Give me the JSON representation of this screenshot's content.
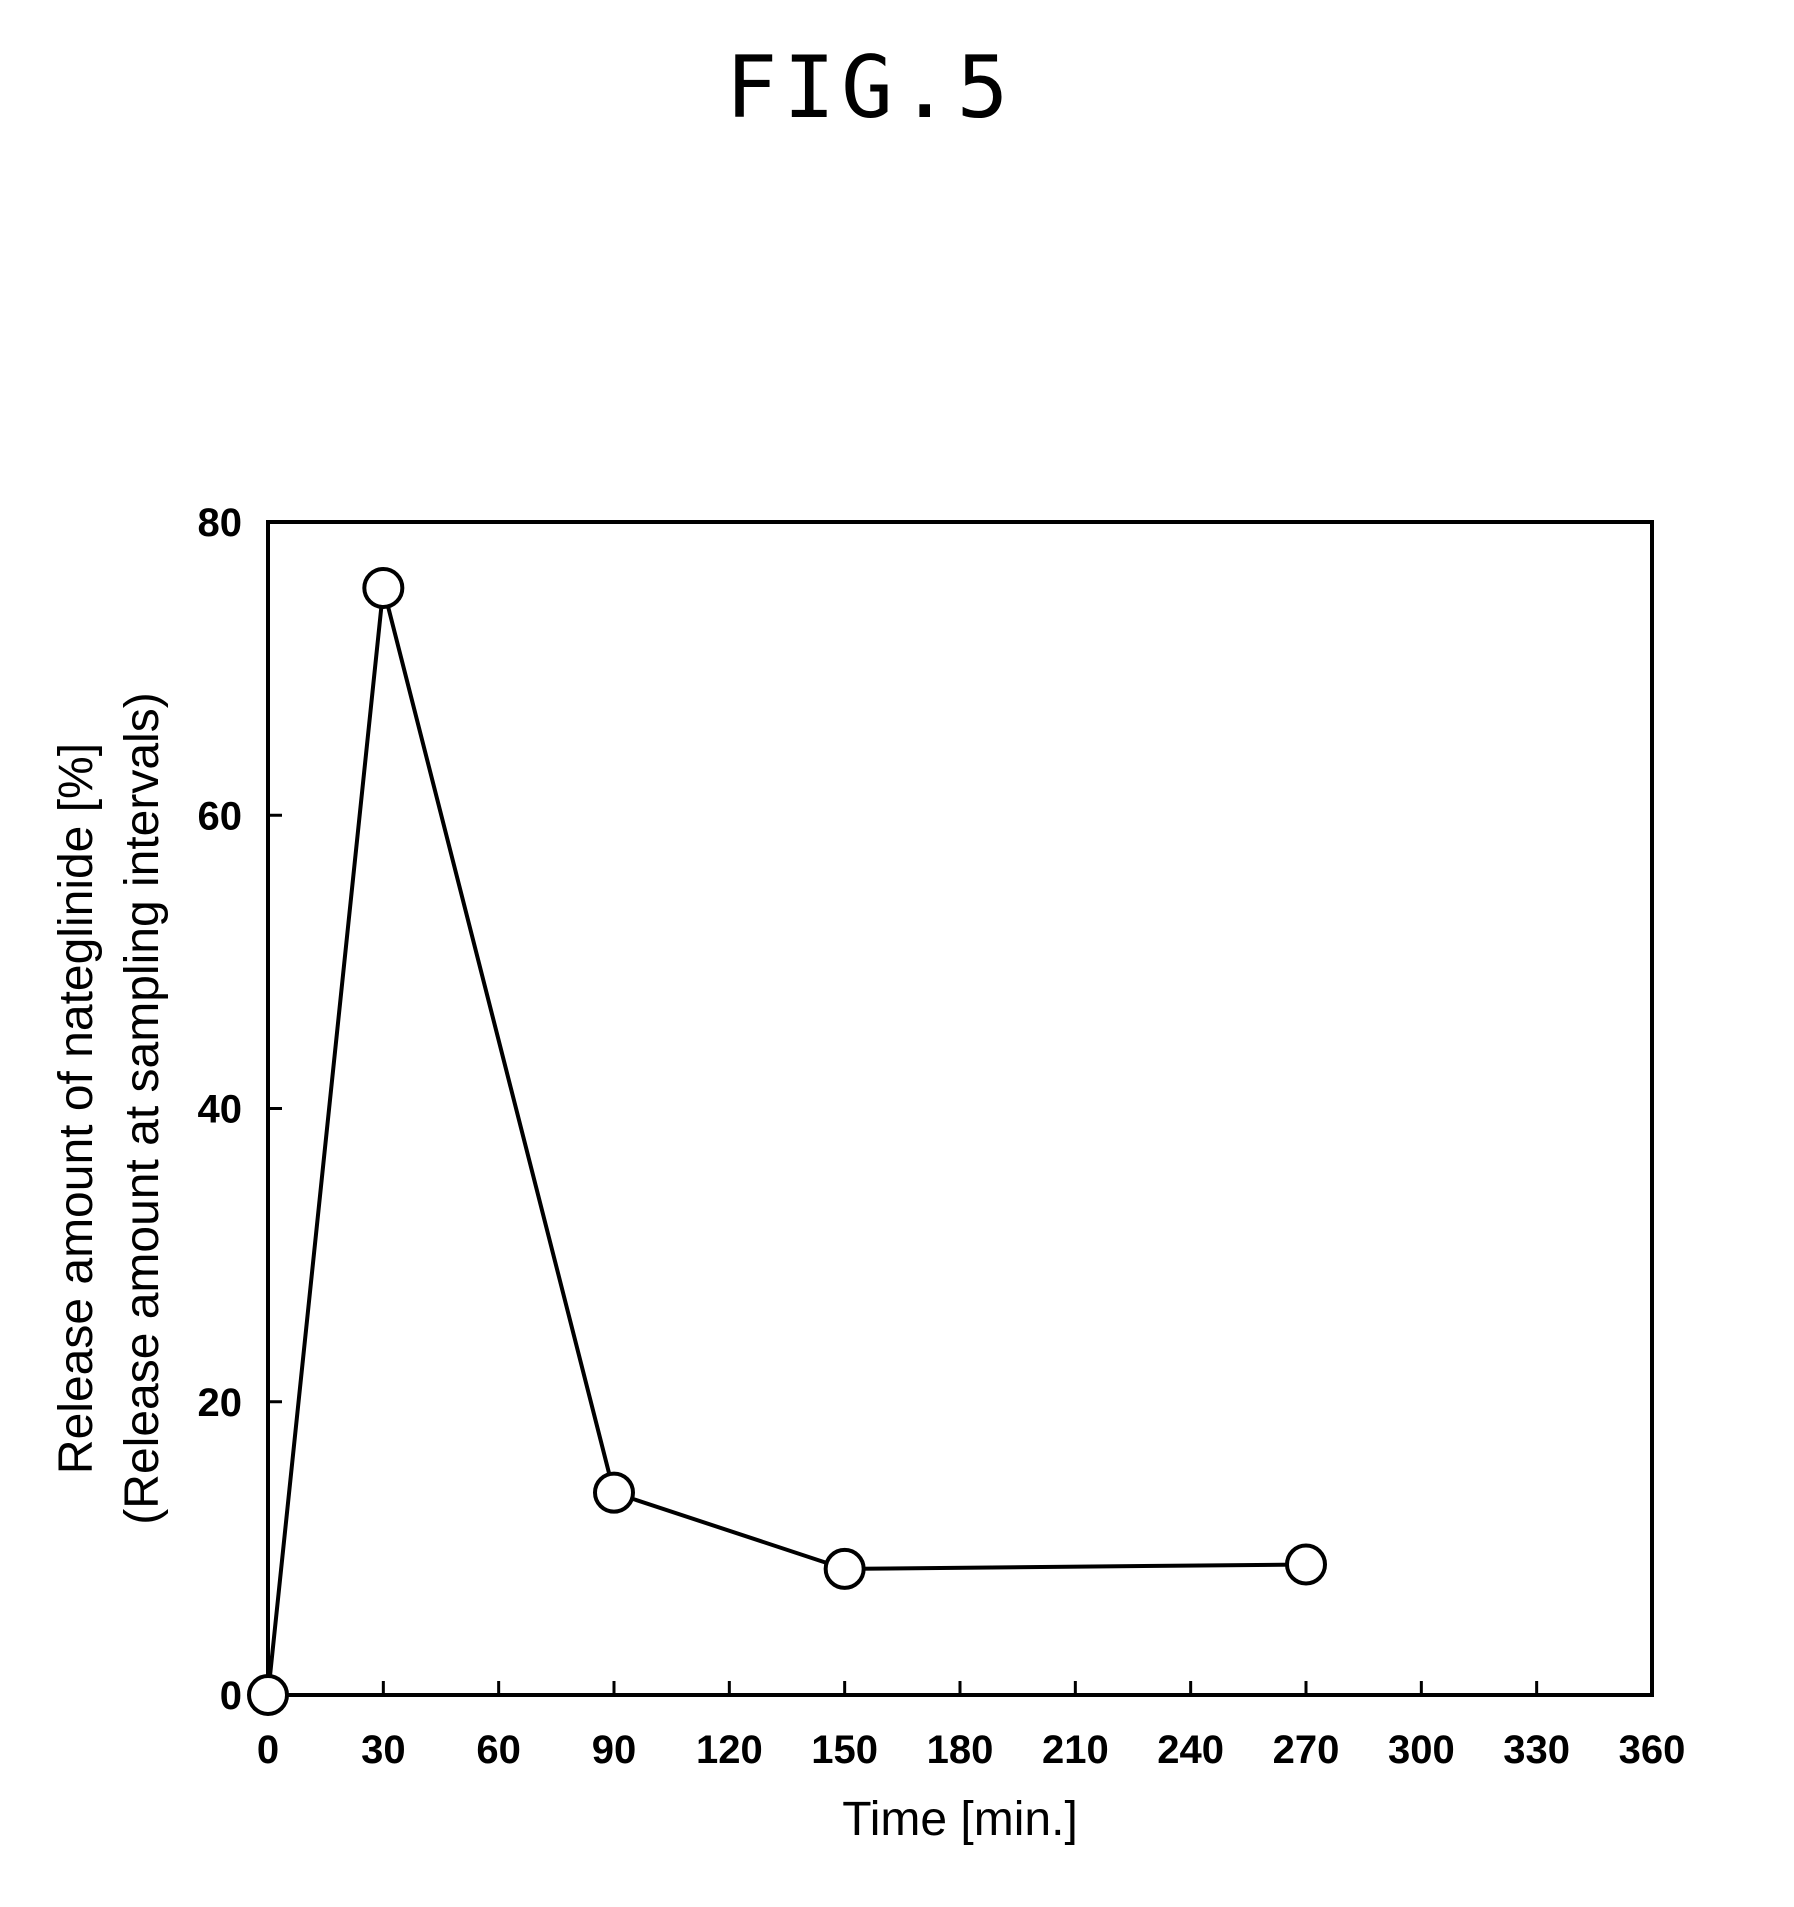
{
  "figure": {
    "title": "FIG.5"
  },
  "chart_data": {
    "type": "line",
    "title": "FIG.5",
    "xlabel": "Time [min.]",
    "ylabel_line1": "Release amount of nateglinide  [%]",
    "ylabel_line2": "(Release amount at sampling intervals)",
    "xlim": [
      0,
      360
    ],
    "ylim": [
      0,
      80
    ],
    "x_ticks": [
      0,
      30,
      60,
      90,
      120,
      150,
      180,
      210,
      240,
      270,
      300,
      330,
      360
    ],
    "y_ticks": [
      0,
      20,
      40,
      60,
      80
    ],
    "grid": false,
    "marker": "open-circle",
    "series": [
      {
        "x": [
          0,
          30,
          90,
          150,
          270
        ],
        "y": [
          0,
          75.5,
          13.8,
          8.6,
          8.9
        ]
      }
    ]
  }
}
